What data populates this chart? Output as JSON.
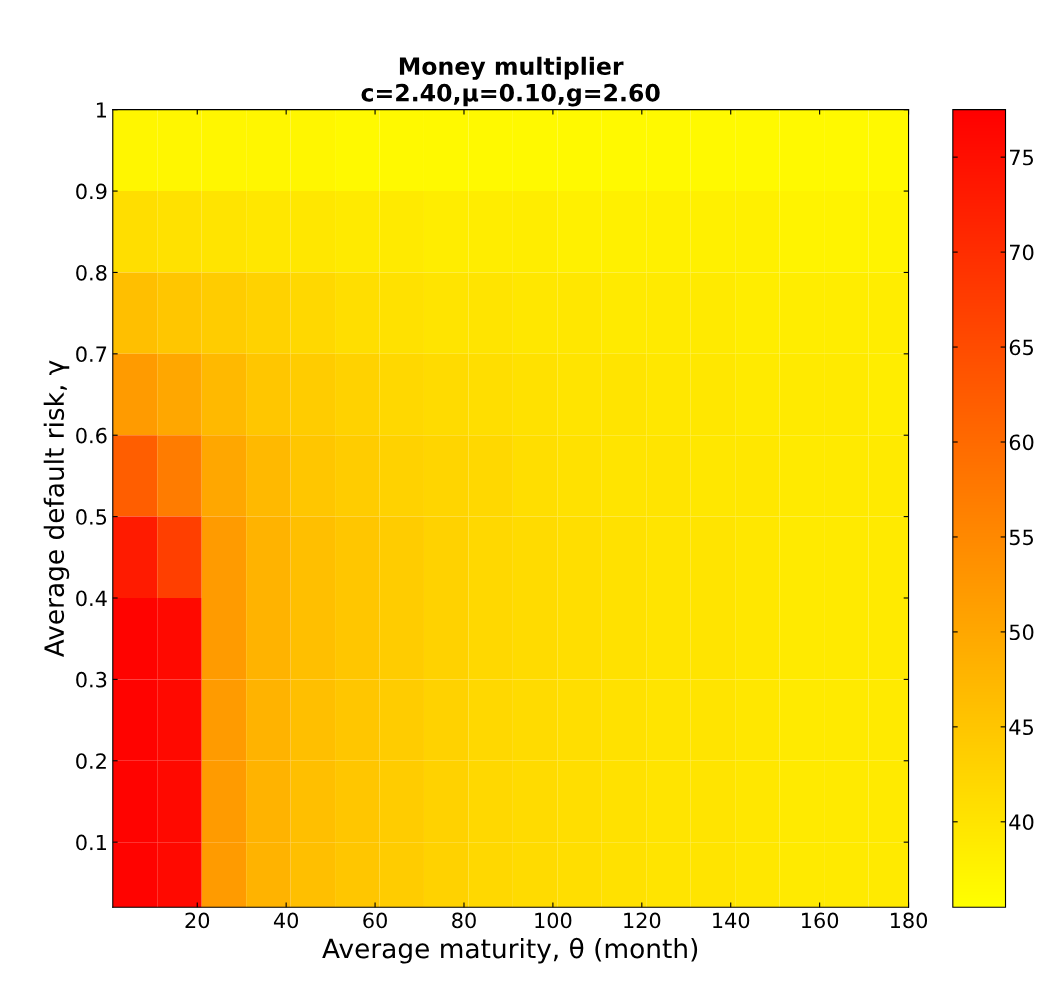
{
  "chart_data": {
    "type": "heatmap",
    "title": "Money multiplier\nc=2.40,μ=0.10,g=2.60",
    "xlabel": "Average maturity, θ (month)",
    "ylabel": "Average default risk, γ",
    "x": [
      6,
      16,
      26,
      36,
      46,
      56,
      66,
      76,
      86,
      96,
      106,
      116,
      126,
      136,
      146,
      156,
      166,
      176
    ],
    "y": [
      0.95,
      0.85,
      0.75,
      0.65,
      0.55,
      0.45,
      0.35,
      0.25,
      0.15,
      0.05
    ],
    "xlim": [
      1,
      180
    ],
    "xticks": [
      20,
      40,
      60,
      80,
      100,
      120,
      140,
      160,
      180
    ],
    "ylim": [
      0.02,
      1
    ],
    "yticks": [
      0.1,
      0.2,
      0.3,
      0.4,
      0.5,
      0.6,
      0.7,
      0.8,
      0.9,
      1
    ],
    "clim": [
      35.5,
      77.5
    ],
    "cticks": [
      40,
      45,
      50,
      55,
      60,
      65,
      70,
      75
    ],
    "cells": [
      [
        37,
        37,
        37,
        37,
        37,
        36.5,
        36.5,
        36.5,
        36.5,
        36.5,
        36.5,
        36.5,
        36.5,
        36.5,
        36.5,
        36.5,
        36.5,
        36.5
      ],
      [
        41,
        40.5,
        40,
        39.5,
        39.5,
        39,
        39,
        38.5,
        38.5,
        38.5,
        38,
        38,
        38,
        38,
        38,
        37.5,
        37.5,
        37.5
      ],
      [
        46,
        45,
        44,
        43,
        42,
        41,
        40.5,
        40,
        40,
        39.5,
        39.5,
        39,
        39,
        39,
        38.5,
        38.5,
        38.5,
        38.5
      ],
      [
        52,
        50,
        47,
        45,
        44,
        43,
        42,
        41.5,
        41,
        40.5,
        40,
        40,
        39.5,
        39.5,
        39,
        39,
        39,
        38.5
      ],
      [
        62,
        57,
        50,
        47,
        45,
        44,
        43,
        42.5,
        42,
        41,
        40.5,
        40,
        40,
        39.5,
        39.5,
        39,
        39,
        39
      ],
      [
        73,
        67,
        52,
        48,
        46,
        45,
        44,
        43,
        42,
        41.5,
        41,
        40.5,
        40,
        40,
        39.5,
        39,
        39,
        39
      ],
      [
        77,
        76,
        52,
        48,
        46,
        45,
        44,
        43,
        42,
        41.5,
        41,
        40.5,
        40,
        40,
        39.5,
        39,
        39,
        39
      ],
      [
        77,
        76,
        52,
        48,
        46,
        45,
        44,
        43,
        42,
        41.5,
        41,
        40.5,
        40,
        40,
        39.5,
        39,
        39,
        39
      ],
      [
        77,
        76,
        52,
        48,
        46,
        45,
        44,
        43,
        42,
        41.5,
        41,
        40.5,
        40,
        40,
        39.5,
        39,
        39,
        39
      ],
      [
        77,
        76,
        52,
        48,
        46,
        45,
        44,
        43,
        42,
        41.5,
        41,
        40.5,
        40,
        40,
        39.5,
        39,
        39,
        39
      ]
    ]
  }
}
